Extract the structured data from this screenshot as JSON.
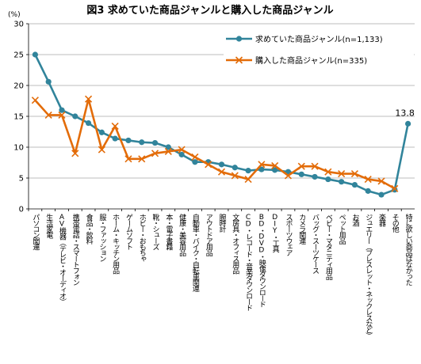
{
  "chart_data": {
    "type": "line",
    "title": "図3 求めていた商品ジャンルと購入した商品ジャンル",
    "yunit": "(%)",
    "ylim": [
      0,
      30
    ],
    "yticks": [
      0,
      5,
      10,
      15,
      20,
      25,
      30
    ],
    "grid": true,
    "legend_position": "top-right",
    "categories": [
      "パソコン関連",
      "生活家電",
      "AV機器（テレビ・オーディオ）",
      "携帯電話・スマートフォン",
      "食品・飲料",
      "服・ファッション",
      "ホーム・キッチン用品",
      "ゲームソフト",
      "ホビー・おもちゃ",
      "靴・シューズ",
      "本・電子書籍",
      "健康・美容用品",
      "自動車・バイク・自転車関連",
      "アウトドア用品",
      "腕時計",
      "文房具・オフィス用品",
      "CD・レコード・音楽ダウンロード",
      "BD・DVD・映像ダウンロード",
      "DIY・工具",
      "スポーツウェア",
      "カメラ関連",
      "バッグ・スーツケース",
      "ベビー・マタニティ用品",
      "ペット用品",
      "お酒",
      "ジュエリー（ブレスレット・ネックレスなど）",
      "楽器",
      "その他",
      "特に欲しい商品はなかった"
    ],
    "series": [
      {
        "name": "求めていた商品ジャンル(n=1,133)",
        "color": "#31849b",
        "marker": "circle",
        "values": [
          25.0,
          20.6,
          16.0,
          15.0,
          13.9,
          12.4,
          11.4,
          11.1,
          10.8,
          10.7,
          10.0,
          8.8,
          7.6,
          7.6,
          7.2,
          6.7,
          6.2,
          6.4,
          6.3,
          6.0,
          5.6,
          5.2,
          4.8,
          4.4,
          3.9,
          2.9,
          2.3,
          3.1,
          13.8
        ]
      },
      {
        "name": "購入した商品ジャンル(n=335)",
        "color": "#e36c09",
        "marker": "x",
        "values": [
          17.6,
          15.2,
          15.2,
          9.0,
          17.8,
          9.6,
          13.4,
          8.1,
          8.1,
          9.0,
          9.3,
          9.6,
          8.4,
          7.2,
          6.0,
          5.4,
          4.8,
          7.2,
          7.0,
          5.4,
          6.9,
          6.9,
          6.0,
          5.7,
          5.7,
          4.8,
          4.5,
          3.3,
          null
        ]
      }
    ],
    "annotations": [
      {
        "category_index": 28,
        "series_index": 0,
        "text": "13.8"
      }
    ]
  }
}
